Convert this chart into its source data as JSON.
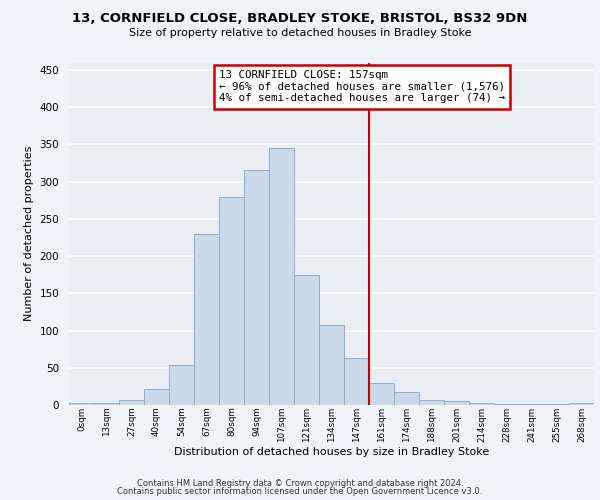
{
  "title_line1": "13, CORNFIELD CLOSE, BRADLEY STOKE, BRISTOL, BS32 9DN",
  "title_line2": "Size of property relative to detached houses in Bradley Stoke",
  "xlabel": "Distribution of detached houses by size in Bradley Stoke",
  "ylabel": "Number of detached properties",
  "bar_labels": [
    "0sqm",
    "13sqm",
    "27sqm",
    "40sqm",
    "54sqm",
    "67sqm",
    "80sqm",
    "94sqm",
    "107sqm",
    "121sqm",
    "134sqm",
    "147sqm",
    "161sqm",
    "174sqm",
    "188sqm",
    "201sqm",
    "214sqm",
    "228sqm",
    "241sqm",
    "255sqm",
    "268sqm"
  ],
  "bar_values": [
    3,
    3,
    7,
    22,
    54,
    230,
    280,
    315,
    345,
    175,
    108,
    63,
    30,
    18,
    7,
    5,
    3,
    1,
    1,
    1,
    3
  ],
  "bar_color": "#ccd9e8",
  "bar_edgecolor": "#8ab0cc",
  "vline_color": "#cc0000",
  "annotation_text": "13 CORNFIELD CLOSE: 157sqm\n← 96% of detached houses are smaller (1,576)\n4% of semi-detached houses are larger (74) →",
  "annotation_box_color": "#cc0000",
  "footer_line1": "Contains HM Land Registry data © Crown copyright and database right 2024.",
  "footer_line2": "Contains public sector information licensed under the Open Government Licence v3.0.",
  "ylim": [
    0,
    460
  ],
  "yticks": [
    0,
    50,
    100,
    150,
    200,
    250,
    300,
    350,
    400,
    450
  ],
  "bg_color": "#e8eef4",
  "fig_bg_color": "#f0f4f8",
  "grid_color": "#ffffff"
}
